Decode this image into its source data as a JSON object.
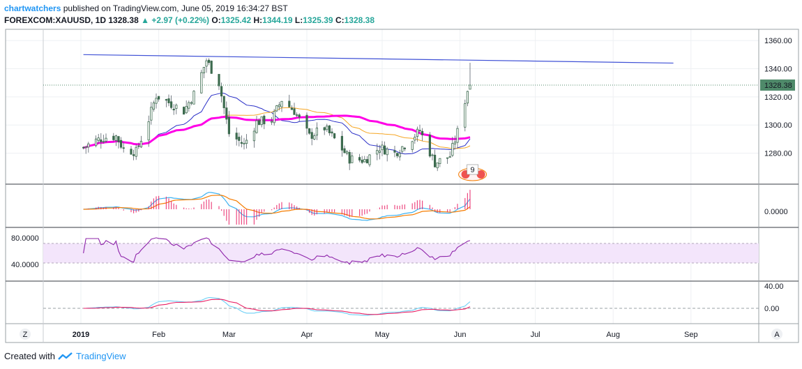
{
  "header": {
    "author": "chartwatchers",
    "published_text": "published on TradingView.com, June 05, 2019 16:34:27 BST",
    "symbol": "FOREXCOM:XAUUSD, 1D",
    "last": "1328.38",
    "change": "+2.97 (+0.22%)",
    "o_label": "O:",
    "o": "1325.42",
    "h_label": "H:",
    "h": "1344.19",
    "l_label": "L:",
    "l": "1325.39",
    "c_label": "C:",
    "c": "1328.38"
  },
  "footer": {
    "created_with": "Created with",
    "brand": "TradingView"
  },
  "buttons": {
    "zoom": "Z",
    "auto": "A"
  },
  "colors": {
    "up": "#26a69a",
    "down": "#ef5350",
    "candle_body": "#3d6b4f",
    "trendline": "#3f51d6",
    "ma_fast": "#2a2fc7",
    "ma_slow": "#f5a623",
    "ma_long": "#ff00e6",
    "macd_line": "#3db1f0",
    "signal_line": "#f57c00",
    "rsi": "#8e24aa",
    "rsi_band": "#f3e5fb",
    "stoch_k": "#6ccff6",
    "stoch_d": "#e91e63",
    "price_label_bg": "#4f8a6a"
  },
  "chart_data": {
    "type": "line",
    "title": "FOREXCOM:XAUUSD, 1D",
    "price_axis": {
      "ticks": [
        1280.0,
        1300.0,
        1320.0,
        1340.0,
        1360.0
      ],
      "tick_labels": [
        "1280.00",
        "1300.00",
        "1320.00",
        "1340.00",
        "1360.00"
      ],
      "ylim": [
        1258,
        1368
      ]
    },
    "last_price_label": "1328.38",
    "time_axis": {
      "labels": [
        "2019",
        "Feb",
        "Mar",
        "Apr",
        "May",
        "Jun",
        "Jul",
        "Aug",
        "Sep"
      ]
    },
    "series": [
      {
        "name": "XAUUSD close",
        "x": [
          "2019-01-02",
          "2019-01-07",
          "2019-01-10",
          "2019-01-15",
          "2019-01-18",
          "2019-01-23",
          "2019-01-28",
          "2019-01-31",
          "2019-02-05",
          "2019-02-11",
          "2019-02-15",
          "2019-02-20",
          "2019-02-25",
          "2019-03-01",
          "2019-03-07",
          "2019-03-12",
          "2019-03-18",
          "2019-03-22",
          "2019-03-27",
          "2019-04-02",
          "2019-04-08",
          "2019-04-12",
          "2019-04-18",
          "2019-04-24",
          "2019-04-30",
          "2019-05-06",
          "2019-05-10",
          "2019-05-16",
          "2019-05-22",
          "2019-05-28",
          "2019-05-31",
          "2019-06-04",
          "2019-06-05"
        ],
        "values": [
          1284,
          1289,
          1291,
          1292,
          1283,
          1281,
          1304,
          1321,
          1316,
          1310,
          1322,
          1346,
          1330,
          1294,
          1286,
          1302,
          1304,
          1318,
          1310,
          1292,
          1298,
          1290,
          1276,
          1275,
          1284,
          1280,
          1286,
          1296,
          1273,
          1278,
          1295,
          1325,
          1328
        ]
      },
      {
        "name": "Resistance trendline",
        "x": [
          "2019-01-02",
          "2019-08-25"
        ],
        "values": [
          1350,
          1344
        ]
      }
    ],
    "moving_averages": [
      {
        "name": "MA fast",
        "color": "#2a2fc7"
      },
      {
        "name": "MA slow",
        "color": "#f5a623"
      },
      {
        "name": "MA long",
        "color": "#ff00e6"
      }
    ],
    "event_badge": "9",
    "macd": {
      "tick_labels": [
        "0.0000"
      ]
    },
    "rsi": {
      "tick_labels": [
        "80.0000",
        "40.0000"
      ],
      "band": [
        30,
        70
      ]
    },
    "stoch": {
      "tick_labels": [
        "40.00",
        "0.00"
      ]
    }
  }
}
